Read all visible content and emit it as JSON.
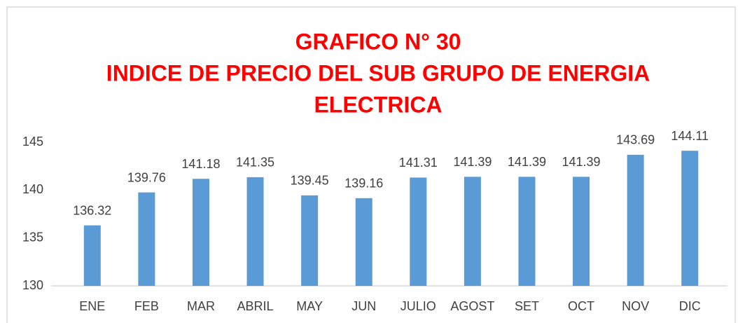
{
  "chart_data": {
    "type": "bar",
    "title": [
      "GRAFICO N° 30",
      "INDICE DE PRECIO DEL SUB GRUPO DE ENERGIA",
      "ELECTRICA"
    ],
    "categories": [
      "ENE",
      "FEB",
      "MAR",
      "ABRIL",
      "MAY",
      "JUN",
      "JULIO",
      "AGOST",
      "SET",
      "OCT",
      "NOV",
      "DIC"
    ],
    "values": [
      136.32,
      139.76,
      141.18,
      141.35,
      139.45,
      139.16,
      141.31,
      141.39,
      141.39,
      141.39,
      143.69,
      144.11
    ],
    "color": "#5b9bd5",
    "ylim": [
      130,
      145
    ],
    "yticks": [
      130,
      135,
      140,
      145
    ],
    "grid": false
  }
}
